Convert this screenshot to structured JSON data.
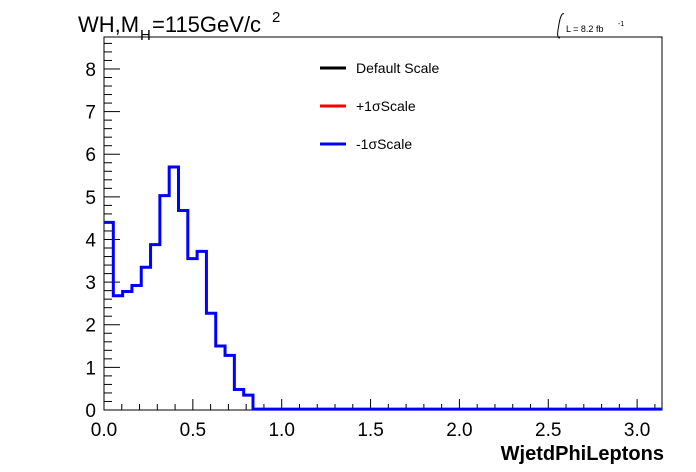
{
  "chart_data": {
    "type": "line",
    "title_main": "WH,M",
    "title_sub": "H",
    "title_rest": "=115GeV/c",
    "title_sup": "2",
    "lumi_text": "L = 8.2 fb",
    "lumi_sup": "-1",
    "xlabel": "WjetdPhiLeptons",
    "ylabel": "",
    "xlim": [
      0,
      3.14
    ],
    "ylim": [
      0,
      8.75
    ],
    "x_ticks": [
      "0.0",
      "0.5",
      "1.0",
      "1.5",
      "2.0",
      "2.5",
      "3.0"
    ],
    "y_ticks": [
      "0",
      "1",
      "2",
      "3",
      "4",
      "5",
      "6",
      "7",
      "8"
    ],
    "bin_width": 0.0524,
    "legend": {
      "placement": "top-right",
      "entries": [
        {
          "label": "Default Scale",
          "color": "#000000"
        },
        {
          "label": "+1σScale",
          "color": "#ff0000"
        },
        {
          "label": "-1σScale",
          "color": "#0000ff"
        }
      ]
    },
    "series": [
      {
        "name": "-1σScale",
        "color": "#0000ff",
        "values": [
          4.4,
          2.68,
          2.78,
          2.92,
          3.35,
          3.88,
          5.03,
          5.7,
          4.68,
          3.55,
          3.72,
          2.27,
          1.5,
          1.28,
          0.48,
          0.35,
          0.02,
          0.02,
          0.02,
          0.02,
          0.02,
          0.02,
          0.02,
          0.02,
          0.02,
          0.02,
          0.02,
          0.02,
          0.02,
          0.02,
          0.02,
          0.02,
          0.02,
          0.02,
          0.02,
          0.02,
          0.02,
          0.02,
          0.02,
          0.02,
          0.02,
          0.02,
          0.02,
          0.02,
          0.02,
          0.02,
          0.02,
          0.02,
          0.02,
          0.02,
          0.02,
          0.02,
          0.02,
          0.02,
          0.02,
          0.02,
          0.02,
          0.02,
          0.02,
          0.02
        ]
      }
    ]
  }
}
